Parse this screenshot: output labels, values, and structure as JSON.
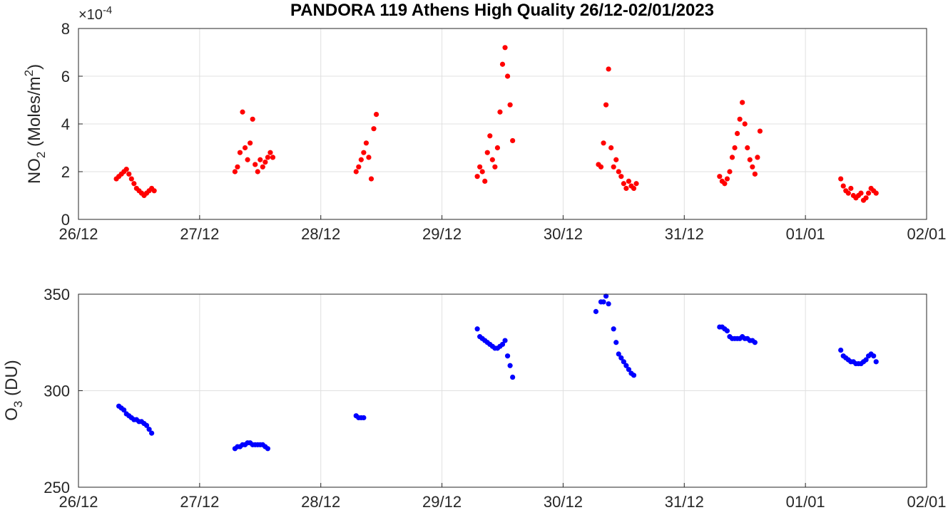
{
  "title": "PANDORA 119 Athens High Quality 26/12-02/01/2023",
  "colors": {
    "no2": "#ff0000",
    "o3": "#0000ff",
    "grid": "#e0e0e0",
    "axis": "#262626"
  },
  "chart_data": [
    {
      "type": "scatter",
      "ylabel": {
        "base": "NO",
        "sub": "2",
        "unit_pre": " (Moles/m",
        "sup": "2",
        "unit_post": ")"
      },
      "y_multiplier": {
        "base": "×10",
        "exp": "-4"
      },
      "ylim": [
        0,
        8
      ],
      "yticks": [
        "0",
        "2",
        "4",
        "6",
        "8"
      ],
      "xlim": [
        "26/12",
        "02/01"
      ],
      "xticks": [
        "26/12",
        "27/12",
        "28/12",
        "29/12",
        "30/12",
        "31/12",
        "01/01",
        "02/01"
      ],
      "grid": true,
      "series": [
        {
          "color": "#ff0000",
          "x": [
            "26/12 07:30",
            "26/12 08:00",
            "26/12 08:30",
            "26/12 09:00",
            "26/12 09:30",
            "26/12 10:00",
            "26/12 10:30",
            "26/12 11:00",
            "26/12 11:30",
            "26/12 12:00",
            "26/12 12:30",
            "26/12 13:00",
            "26/12 13:30",
            "26/12 14:00",
            "26/12 14:30",
            "26/12 15:00",
            "27/12 07:00",
            "27/12 07:30",
            "27/12 08:00",
            "27/12 08:30",
            "27/12 09:00",
            "27/12 09:30",
            "27/12 10:00",
            "27/12 10:30",
            "27/12 11:00",
            "27/12 11:30",
            "27/12 12:00",
            "27/12 12:30",
            "27/12 13:00",
            "27/12 13:30",
            "27/12 14:00",
            "27/12 14:30",
            "28/12 07:00",
            "28/12 07:30",
            "28/12 08:00",
            "28/12 08:30",
            "28/12 09:00",
            "28/12 09:30",
            "28/12 10:00",
            "28/12 10:30",
            "28/12 11:00",
            "29/12 07:00",
            "29/12 07:30",
            "29/12 08:00",
            "29/12 08:30",
            "29/12 09:00",
            "29/12 09:30",
            "29/12 10:00",
            "29/12 10:30",
            "29/12 11:00",
            "29/12 11:30",
            "29/12 12:00",
            "29/12 12:30",
            "29/12 13:00",
            "29/12 13:30",
            "29/12 14:00",
            "30/12 07:00",
            "30/12 07:30",
            "30/12 08:00",
            "30/12 08:30",
            "30/12 09:00",
            "30/12 09:30",
            "30/12 10:00",
            "30/12 10:30",
            "30/12 11:00",
            "30/12 11:30",
            "30/12 12:00",
            "30/12 12:30",
            "30/12 13:00",
            "30/12 13:30",
            "30/12 14:00",
            "30/12 14:30",
            "31/12 07:00",
            "31/12 07:30",
            "31/12 08:00",
            "31/12 08:30",
            "31/12 09:00",
            "31/12 09:30",
            "31/12 10:00",
            "31/12 10:30",
            "31/12 11:00",
            "31/12 11:30",
            "31/12 12:00",
            "31/12 12:30",
            "31/12 13:00",
            "31/12 13:30",
            "31/12 14:00",
            "31/12 14:30",
            "31/12 15:00",
            "01/01 07:00",
            "01/01 07:30",
            "01/01 08:00",
            "01/01 08:30",
            "01/01 09:00",
            "01/01 09:30",
            "01/01 10:00",
            "01/01 10:30",
            "01/01 11:00",
            "01/01 11:30",
            "01/01 12:00",
            "01/01 12:30",
            "01/01 13:00",
            "01/01 13:30",
            "01/01 14:00"
          ],
          "y": [
            1.7,
            1.8,
            1.9,
            2.0,
            2.1,
            1.9,
            1.7,
            1.5,
            1.3,
            1.2,
            1.1,
            1.0,
            1.1,
            1.2,
            1.3,
            1.2,
            2.0,
            2.2,
            2.8,
            4.5,
            3.0,
            2.5,
            3.2,
            4.2,
            2.3,
            2.0,
            2.5,
            2.2,
            2.4,
            2.6,
            2.8,
            2.6,
            2.0,
            2.2,
            2.5,
            2.8,
            3.2,
            2.6,
            1.7,
            3.8,
            4.4,
            1.8,
            2.2,
            2.0,
            1.6,
            2.8,
            3.5,
            2.5,
            2.2,
            3.0,
            4.5,
            6.5,
            7.2,
            6.0,
            4.8,
            3.3,
            2.3,
            2.2,
            3.2,
            4.8,
            6.3,
            3.0,
            2.2,
            2.5,
            2.0,
            1.8,
            1.5,
            1.3,
            1.6,
            1.4,
            1.3,
            1.5,
            1.8,
            1.6,
            1.5,
            1.7,
            2.0,
            2.6,
            3.0,
            3.6,
            4.2,
            4.9,
            4.0,
            3.0,
            2.5,
            2.2,
            1.9,
            2.6,
            3.7,
            1.7,
            1.4,
            1.2,
            1.1,
            1.3,
            1.0,
            0.9,
            1.0,
            1.1,
            0.8,
            0.9,
            1.1,
            1.3,
            1.2,
            1.1
          ]
        }
      ]
    },
    {
      "type": "scatter",
      "ylabel": {
        "base": "O",
        "sub": "3",
        "unit_pre": " (DU)",
        "sup": "",
        "unit_post": ""
      },
      "ylim": [
        250,
        350
      ],
      "yticks": [
        "250",
        "300",
        "350"
      ],
      "xlim": [
        "26/12",
        "02/01"
      ],
      "xticks": [
        "26/12",
        "27/12",
        "28/12",
        "29/12",
        "30/12",
        "31/12",
        "01/01",
        "02/01"
      ],
      "grid": true,
      "series": [
        {
          "color": "#0000ff",
          "x": [
            "26/12 08:00",
            "26/12 08:30",
            "26/12 09:00",
            "26/12 09:30",
            "26/12 10:00",
            "26/12 10:30",
            "26/12 11:00",
            "26/12 11:30",
            "26/12 12:00",
            "26/12 12:30",
            "26/12 13:00",
            "26/12 13:30",
            "26/12 14:00",
            "26/12 14:30",
            "27/12 07:00",
            "27/12 07:30",
            "27/12 08:00",
            "27/12 08:30",
            "27/12 09:00",
            "27/12 09:30",
            "27/12 10:00",
            "27/12 10:30",
            "27/12 11:00",
            "27/12 11:30",
            "27/12 12:00",
            "27/12 12:30",
            "27/12 13:00",
            "27/12 13:30",
            "28/12 07:00",
            "28/12 07:30",
            "28/12 08:00",
            "28/12 08:30",
            "29/12 07:00",
            "29/12 07:30",
            "29/12 08:00",
            "29/12 08:30",
            "29/12 09:00",
            "29/12 09:30",
            "29/12 10:00",
            "29/12 10:30",
            "29/12 11:00",
            "29/12 11:30",
            "29/12 12:00",
            "29/12 12:30",
            "29/12 13:00",
            "29/12 13:30",
            "29/12 14:00",
            "30/12 06:30",
            "30/12 07:30",
            "30/12 08:00",
            "30/12 08:30",
            "30/12 09:00",
            "30/12 10:00",
            "30/12 10:30",
            "30/12 11:00",
            "30/12 11:30",
            "30/12 12:00",
            "30/12 12:30",
            "30/12 13:00",
            "30/12 13:30",
            "30/12 14:00",
            "31/12 07:00",
            "31/12 07:30",
            "31/12 08:00",
            "31/12 08:30",
            "31/12 09:00",
            "31/12 09:30",
            "31/12 10:00",
            "31/12 10:30",
            "31/12 11:00",
            "31/12 11:30",
            "31/12 12:00",
            "31/12 12:30",
            "31/12 13:00",
            "31/12 13:30",
            "31/12 14:00",
            "01/01 07:00",
            "01/01 07:30",
            "01/01 08:00",
            "01/01 08:30",
            "01/01 09:00",
            "01/01 09:30",
            "01/01 10:00",
            "01/01 10:30",
            "01/01 11:00",
            "01/01 11:30",
            "01/01 12:00",
            "01/01 12:30",
            "01/01 13:00",
            "01/01 13:30",
            "01/01 14:00"
          ],
          "y": [
            292,
            291,
            290,
            288,
            287,
            286,
            285,
            285,
            284,
            284,
            283,
            282,
            280,
            278,
            270,
            271,
            271,
            272,
            272,
            273,
            273,
            272,
            272,
            272,
            272,
            272,
            271,
            270,
            287,
            286,
            286,
            286,
            332,
            328,
            327,
            326,
            325,
            324,
            323,
            322,
            322,
            323,
            324,
            326,
            318,
            313,
            307,
            341,
            346,
            346,
            349,
            345,
            332,
            325,
            319,
            317,
            315,
            313,
            311,
            309,
            308,
            333,
            333,
            332,
            331,
            328,
            327,
            327,
            327,
            327,
            328,
            327,
            327,
            326,
            326,
            325,
            321,
            318,
            317,
            316,
            315,
            315,
            314,
            314,
            314,
            315,
            316,
            318,
            319,
            318,
            315
          ]
        }
      ]
    }
  ]
}
